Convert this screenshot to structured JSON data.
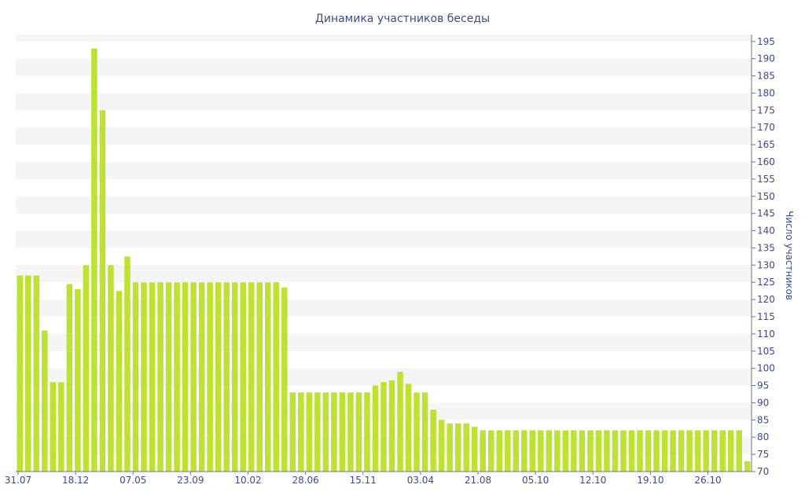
{
  "chart_data": {
    "type": "bar",
    "title": "Динамика участников беседы",
    "xlabel": "",
    "ylabel": "Число участников",
    "ylim": [
      70,
      197
    ],
    "yticks": [
      70,
      75,
      80,
      85,
      90,
      95,
      100,
      105,
      110,
      115,
      120,
      125,
      130,
      135,
      140,
      145,
      150,
      155,
      160,
      165,
      170,
      175,
      180,
      185,
      190,
      195
    ],
    "xtick_labels": [
      "31.07",
      "18.12",
      "07.05",
      "23.09",
      "10.02",
      "28.06",
      "15.11",
      "03.04",
      "21.08",
      "05.10",
      "12.10",
      "19.10",
      "26.10"
    ],
    "grid": "horizontal bands",
    "bar_color": "#bde234",
    "values": [
      127,
      127,
      127,
      111,
      96,
      96,
      124.5,
      123,
      130,
      193,
      175,
      130,
      122.5,
      132.5,
      125,
      125,
      125,
      125,
      125,
      125,
      125,
      125,
      125,
      125,
      125,
      125,
      125,
      125,
      125,
      125,
      125,
      125,
      123.5,
      93,
      93,
      93,
      93,
      93,
      93,
      93,
      93,
      93,
      93,
      95,
      96,
      96.5,
      99,
      95.5,
      93,
      93,
      88,
      85,
      84,
      84,
      84,
      83,
      82,
      82,
      82,
      82,
      82,
      82,
      82,
      82,
      82,
      82,
      82,
      82,
      82,
      82,
      82,
      82,
      82,
      82,
      82,
      82,
      82,
      82,
      82,
      82,
      82,
      82,
      82,
      82,
      82,
      82,
      82,
      82,
      73
    ]
  }
}
